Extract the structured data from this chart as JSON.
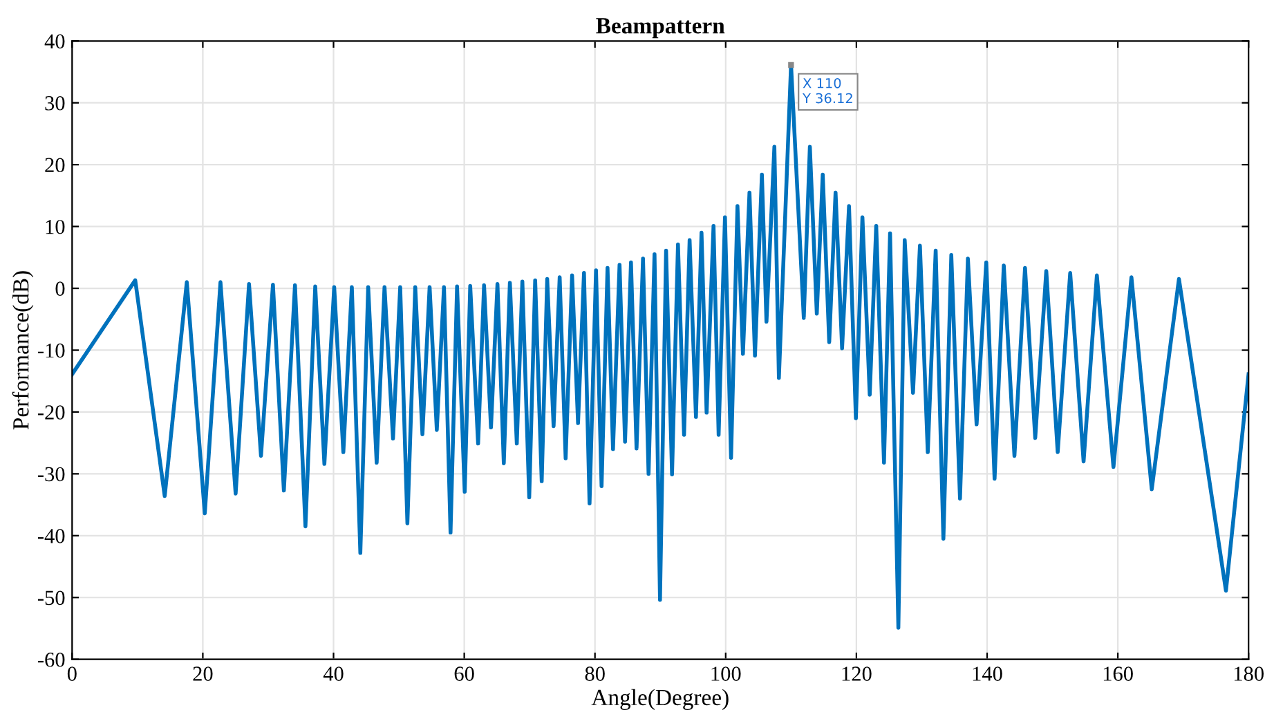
{
  "chart_data": {
    "type": "line",
    "title": "Beampattern",
    "xlabel": "Angle(Degree)",
    "ylabel": "Performance(dB)",
    "x": [
      0,
      9.66,
      14.17,
      17.55,
      20.3,
      22.7,
      25.02,
      27.07,
      28.9,
      30.73,
      32.4,
      34.1,
      35.7,
      37.2,
      38.6,
      40.1,
      41.5,
      42.8,
      44.1,
      45.3,
      46.6,
      47.8,
      49.1,
      50.2,
      51.3,
      52.5,
      53.6,
      54.7,
      55.8,
      56.9,
      57.9,
      58.9,
      60.07,
      60.91,
      62.12,
      63.03,
      64.09,
      65.08,
      66.05,
      66.98,
      68.04,
      68.89,
      69.94,
      70.85,
      71.85,
      72.69,
      73.67,
      74.6,
      75.51,
      76.5,
      77.41,
      78.32,
      79.17,
      80.16,
      81.01,
      81.92,
      82.76,
      83.76,
      84.6,
      85.51,
      86.36,
      87.35,
      88.2,
      89.11,
      89.95,
      90.88,
      91.79,
      92.7,
      93.63,
      94.48,
      95.45,
      96.3,
      97.08,
      98.14,
      98.92,
      99.89,
      100.82,
      101.8,
      102.64,
      103.64,
      104.48,
      105.54,
      106.24,
      107.45,
      108.14,
      110,
      111.95,
      112.88,
      113.94,
      114.85,
      115.84,
      116.81,
      117.81,
      118.87,
      119.92,
      120.92,
      122.04,
      123.03,
      124.22,
      125.15,
      126.42,
      127.39,
      128.66,
      129.72,
      130.92,
      132.13,
      133.31,
      134.52,
      135.85,
      137.06,
      138.39,
      139.87,
      141.14,
      142.55,
      144.18,
      145.8,
      147.36,
      149.05,
      150.8,
      152.71,
      154.76,
      156.79,
      159.33,
      162.08,
      165.19,
      169.35,
      176.54,
      180
    ],
    "values": [
      -13.9,
      1.3,
      -33.6,
      1.0,
      -36.4,
      1.0,
      -33.2,
      0.7,
      -27.1,
      0.6,
      -32.7,
      0.5,
      -38.5,
      0.3,
      -28.4,
      0.2,
      -26.5,
      0.2,
      -42.8,
      0.2,
      -28.2,
      0.2,
      -24.3,
      0.2,
      -38.0,
      0.2,
      -23.6,
      0.2,
      -22.9,
      0.2,
      -39.5,
      0.3,
      -32.9,
      0.4,
      -25.1,
      0.5,
      -22.5,
      0.7,
      -28.3,
      0.9,
      -25.1,
      1.1,
      -33.8,
      1.3,
      -31.2,
      1.5,
      -22.3,
      1.8,
      -27.5,
      2.1,
      -21.8,
      2.5,
      -34.8,
      2.9,
      -32.0,
      3.3,
      -26.0,
      3.8,
      -24.8,
      4.2,
      -25.9,
      4.8,
      -30.0,
      5.5,
      -50.4,
      6.1,
      -30.1,
      7.1,
      -23.7,
      7.8,
      -20.8,
      9.0,
      -20.1,
      10.1,
      -23.7,
      11.5,
      -27.4,
      13.3,
      -10.6,
      15.5,
      -10.9,
      18.4,
      -5.4,
      22.9,
      -14.5,
      36.12,
      -4.8,
      22.9,
      -4.1,
      18.4,
      -8.7,
      15.5,
      -9.7,
      13.3,
      -21.0,
      11.5,
      -17.2,
      10.1,
      -28.2,
      8.9,
      -54.9,
      7.8,
      -16.9,
      6.9,
      -26.5,
      6.1,
      -40.5,
      5.4,
      -34.0,
      4.8,
      -22.0,
      4.2,
      -30.8,
      3.7,
      -27.1,
      3.3,
      -24.2,
      2.8,
      -26.5,
      2.5,
      -28.0,
      2.1,
      -28.9,
      1.8,
      -32.5,
      1.5,
      -48.9,
      -13.9
    ],
    "color": "#0072bd",
    "line_style": "solid",
    "xlim": [
      0,
      180
    ],
    "ylim": [
      -60,
      40
    ],
    "xticks": [
      0,
      20,
      40,
      60,
      80,
      100,
      120,
      140,
      160,
      180
    ],
    "yticks": [
      -60,
      -50,
      -40,
      -30,
      -20,
      -10,
      0,
      10,
      20,
      30,
      40
    ],
    "grid": true,
    "annotations": [
      {
        "text": "X 110\nY 36.12",
        "x": 110,
        "y": 36.12
      }
    ]
  }
}
